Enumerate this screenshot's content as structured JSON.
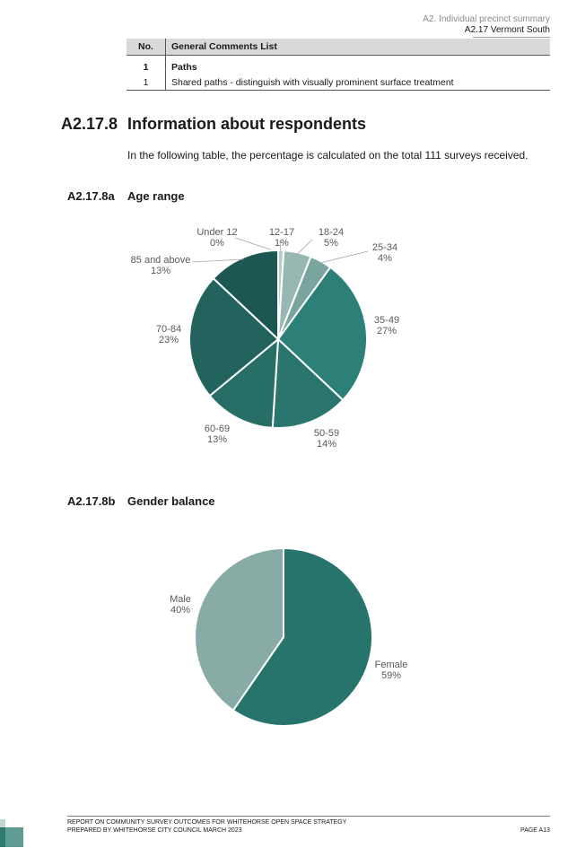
{
  "header": {
    "section": "A2. Individual precinct summary",
    "subsection": "A2.17 Vermont South"
  },
  "comments_table": {
    "col_no": "No.",
    "col_comments": "General Comments List",
    "group_no": "1",
    "group_label": "Paths",
    "row_no": "1",
    "row_text": "Shared paths - distinguish with visually prominent surface treatment"
  },
  "section": {
    "number": "A2.17.8",
    "title": "Information about respondents",
    "intro": "In the following table, the percentage is calculated on the total 111 surveys received."
  },
  "age": {
    "number": "A2.17.8a",
    "title": "Age range"
  },
  "gender": {
    "number": "A2.17.8b",
    "title": "Gender balance"
  },
  "chart_data": [
    {
      "type": "pie",
      "title": "",
      "slices": [
        {
          "label": "Under 12",
          "value": 0,
          "pct": "0%",
          "color": "#c9dcd9"
        },
        {
          "label": "12-17",
          "value": 1,
          "pct": "1%",
          "color": "#b4cdc9"
        },
        {
          "label": "18-24",
          "value": 5,
          "pct": "5%",
          "color": "#96b7b2"
        },
        {
          "label": "25-34",
          "value": 4,
          "pct": "4%",
          "color": "#7aa49e"
        },
        {
          "label": "35-49",
          "value": 27,
          "pct": "27%",
          "color": "#2d8077"
        },
        {
          "label": "50-59",
          "value": 14,
          "pct": "14%",
          "color": "#2a766e"
        },
        {
          "label": "60-69",
          "value": 13,
          "pct": "13%",
          "color": "#266e66"
        },
        {
          "label": "70-84",
          "value": 23,
          "pct": "23%",
          "color": "#22645d"
        },
        {
          "label": "85 and above",
          "value": 13,
          "pct": "13%",
          "color": "#1d5752"
        }
      ]
    },
    {
      "type": "pie",
      "title": "",
      "slices": [
        {
          "label": "Female",
          "value": 59,
          "pct": "59%",
          "color": "#26746c"
        },
        {
          "label": "Male",
          "value": 40,
          "pct": "40%",
          "color": "#88aba6"
        }
      ]
    }
  ],
  "footer": {
    "line1": "REPORT ON COMMUNITY SURVEY OUTCOMES FOR WHITEHORSE OPEN SPACE STRATEGY",
    "line2": "PREPARED BY WHITEHORSE CITY COUNCIL MARCH 2023",
    "page": "PAGE A13"
  }
}
